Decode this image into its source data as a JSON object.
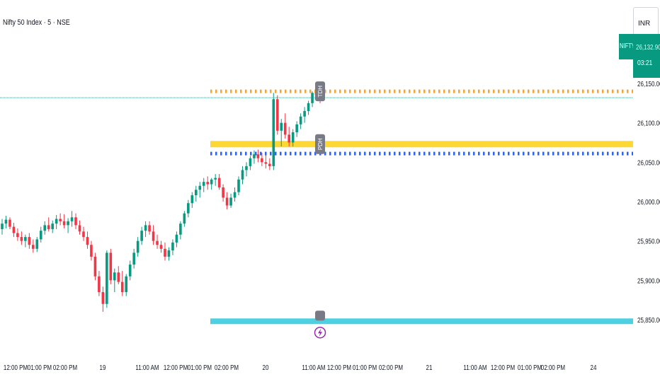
{
  "header": {
    "title": "Nifty 50 Index · 5 · NSE",
    "currency": "INR"
  },
  "last_price": {
    "symbol": "NIFTY",
    "price": "26,132.90",
    "countdown": "03:21",
    "color": "#089981"
  },
  "colors": {
    "up": "#089981",
    "down": "#f23645",
    "tdh_line": "#f7a531",
    "pdh_line": "#fdd835",
    "pdh_dotted": "#2962ff",
    "support_line": "#4dd0e1",
    "label_bg": "#787b86"
  },
  "chart_data": {
    "type": "candlestick",
    "title": "Nifty 50 Index · 5 · NSE",
    "y_axis": {
      "ticks": [
        "26,150.00",
        "26,100.00",
        "26,050.00",
        "26,000.00",
        "25,950.00",
        "25,900.00",
        "25,850.00"
      ],
      "tick_values": [
        26150,
        26100,
        26050,
        26000,
        25950,
        25900,
        25850
      ],
      "ylim": [
        25822,
        26180
      ]
    },
    "x_axis": {
      "ticks": [
        "12:00 PM",
        "01:00 PM",
        "02:00 PM",
        "19",
        "11:00 AM",
        "12:00 PM",
        "01:00 PM",
        "02:00 PM",
        "20",
        "11:00 AM",
        "12:00 PM",
        "01:00 PM",
        "02:00 PM",
        "21",
        "11:00 AM",
        "12:00 PM",
        "01:00 PM",
        "02:00 PM",
        "24"
      ]
    },
    "series": [
      {
        "name": "",
        "ohlc": [
          [
            25965,
            25978,
            25958,
            25972
          ],
          [
            25972,
            25982,
            25966,
            25977
          ],
          [
            25977,
            25980,
            25965,
            25968
          ],
          [
            25968,
            25973,
            25955,
            25960
          ],
          [
            25960,
            25966,
            25950,
            25955
          ],
          [
            25955,
            25962,
            25945,
            25950
          ],
          [
            25950,
            25958,
            25942,
            25955
          ],
          [
            25955,
            25960,
            25940,
            25945
          ],
          [
            25945,
            25952,
            25935,
            25940
          ],
          [
            25940,
            25955,
            25936,
            25952
          ],
          [
            25952,
            25968,
            25948,
            25963
          ],
          [
            25963,
            25975,
            25958,
            25970
          ],
          [
            25970,
            25980,
            25962,
            25965
          ],
          [
            25965,
            25976,
            25960,
            25972
          ],
          [
            25972,
            25983,
            25965,
            25978
          ],
          [
            25978,
            25985,
            25970,
            25975
          ],
          [
            25975,
            25984,
            25966,
            25970
          ],
          [
            25970,
            25979,
            25960,
            25975
          ],
          [
            25975,
            25988,
            25968,
            25980
          ],
          [
            25980,
            25985,
            25965,
            25970
          ],
          [
            25970,
            25976,
            25958,
            25962
          ],
          [
            25962,
            25968,
            25950,
            25955
          ],
          [
            25955,
            25962,
            25940,
            25945
          ],
          [
            25945,
            25950,
            25925,
            25930
          ],
          [
            25930,
            25935,
            25900,
            25905
          ],
          [
            25905,
            25912,
            25880,
            25885
          ],
          [
            25885,
            25892,
            25860,
            25870
          ],
          [
            25870,
            25938,
            25865,
            25935
          ],
          [
            25935,
            25940,
            25895,
            25900
          ],
          [
            25900,
            25915,
            25885,
            25910
          ],
          [
            25910,
            25918,
            25895,
            25898
          ],
          [
            25898,
            25912,
            25880,
            25885
          ],
          [
            25885,
            25908,
            25880,
            25905
          ],
          [
            25905,
            25925,
            25900,
            25920
          ],
          [
            25920,
            25940,
            25915,
            25935
          ],
          [
            25935,
            25955,
            25930,
            25950
          ],
          [
            25950,
            25968,
            25945,
            25963
          ],
          [
            25963,
            25975,
            25955,
            25970
          ],
          [
            25970,
            25975,
            25958,
            25962
          ],
          [
            25962,
            25970,
            25945,
            25950
          ],
          [
            25950,
            25958,
            25940,
            25945
          ],
          [
            25945,
            25950,
            25935,
            25940
          ],
          [
            25940,
            25948,
            25925,
            25930
          ],
          [
            25930,
            25942,
            25925,
            25938
          ],
          [
            25938,
            25952,
            25932,
            25948
          ],
          [
            25948,
            25962,
            25942,
            25958
          ],
          [
            25958,
            25975,
            25952,
            25972
          ],
          [
            25972,
            25988,
            25968,
            25985
          ],
          [
            25985,
            26002,
            25980,
            25998
          ],
          [
            25998,
            26012,
            25992,
            26008
          ],
          [
            26008,
            26020,
            26000,
            26015
          ],
          [
            26015,
            26025,
            26005,
            26020
          ],
          [
            26020,
            26030,
            26012,
            26025
          ],
          [
            26025,
            26032,
            26015,
            26022
          ],
          [
            26022,
            26030,
            26015,
            26028
          ],
          [
            26028,
            26035,
            26020,
            26030
          ],
          [
            26030,
            26035,
            26015,
            26018
          ],
          [
            26018,
            26022,
            26000,
            26005
          ],
          [
            26005,
            26012,
            25990,
            25995
          ],
          [
            25995,
            26010,
            25992,
            26005
          ],
          [
            26005,
            26018,
            26000,
            26012
          ],
          [
            26012,
            26032,
            26008,
            26028
          ],
          [
            26028,
            26045,
            26022,
            26040
          ],
          [
            26040,
            26050,
            26032,
            26045
          ],
          [
            26045,
            26058,
            26040,
            26055
          ],
          [
            26055,
            26065,
            26048,
            26060
          ],
          [
            26060,
            26066,
            26050,
            26055
          ],
          [
            26055,
            26062,
            26045,
            26050
          ],
          [
            26050,
            26060,
            26042,
            26048
          ],
          [
            26048,
            26055,
            26040,
            26045
          ],
          [
            26045,
            26138,
            26040,
            26130
          ],
          [
            26130,
            26135,
            26085,
            26090
          ],
          [
            26090,
            26105,
            26070,
            26100
          ],
          [
            26100,
            26112,
            26080,
            26085
          ],
          [
            26085,
            26095,
            26070,
            26075
          ],
          [
            26075,
            26092,
            26070,
            26088
          ],
          [
            26088,
            26102,
            26082,
            26098
          ],
          [
            26098,
            26112,
            26092,
            26108
          ],
          [
            26108,
            26120,
            26100,
            26115
          ],
          [
            26115,
            26128,
            26110,
            26125
          ],
          [
            26125,
            26140,
            26120,
            26138
          ],
          [
            26138,
            26145,
            26128,
            26135
          ],
          [
            26135,
            26142,
            26125,
            26132
          ]
        ]
      }
    ],
    "levels": [
      {
        "label": "TDH",
        "value": 26140,
        "style": "dotted"
      },
      {
        "label": "PDH",
        "value": 26073,
        "style": "solid"
      },
      {
        "label": "",
        "value": 26061,
        "style": "dotted"
      },
      {
        "label": "",
        "value": 25848,
        "style": "solid"
      }
    ],
    "grid": false,
    "legend": "none"
  }
}
